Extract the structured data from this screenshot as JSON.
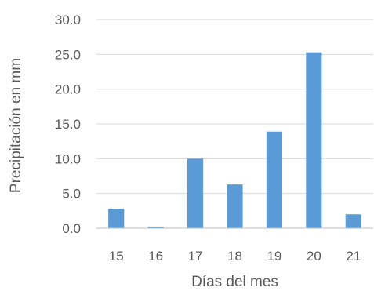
{
  "chart_data": {
    "type": "bar",
    "categories": [
      "15",
      "16",
      "17",
      "18",
      "19",
      "20",
      "21"
    ],
    "values": [
      2.8,
      0.2,
      10.0,
      6.3,
      13.9,
      25.3,
      2.0
    ],
    "xlabel": "Días del mes",
    "ylabel": "Precipitación en mm",
    "ylim": [
      0,
      30
    ],
    "yticks": [
      "0.0",
      "5.0",
      "10.0",
      "15.0",
      "20.0",
      "25.0",
      "30.0"
    ],
    "grid": true,
    "bar_color": "#5b9bd5"
  }
}
